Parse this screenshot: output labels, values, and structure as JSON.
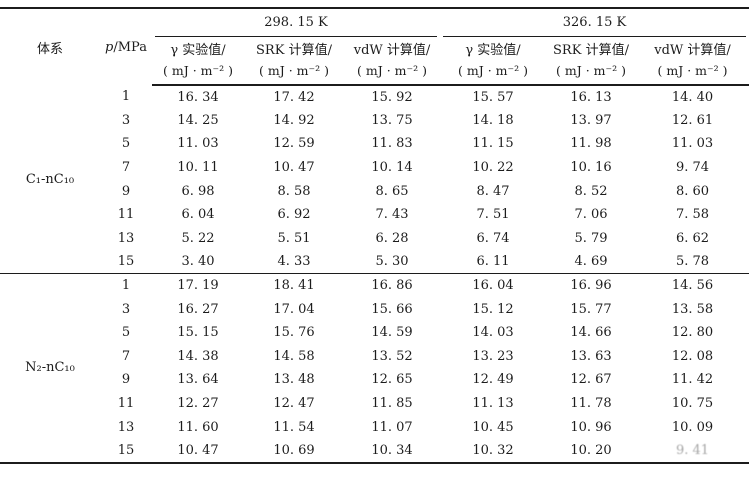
{
  "table": {
    "header": {
      "system_label": "体系",
      "p_symbol": "p",
      "p_unit": "/MPa",
      "unit_line": "( mJ · m⁻² )",
      "groups": [
        {
          "temp": "298. 15 K",
          "cols": [
            "γ 实验值/",
            "SRK 计算值/",
            "vdW 计算值/"
          ]
        },
        {
          "temp": "326. 15 K",
          "cols": [
            "γ 实验值/",
            "SRK 计算值/",
            "vdW 计算值/"
          ]
        }
      ]
    },
    "sections": [
      {
        "system": "C₁-nC₁₀",
        "rows": [
          [
            "1",
            "16. 34",
            "17. 42",
            "15. 92",
            "15. 57",
            "16. 13",
            "14. 40"
          ],
          [
            "3",
            "14. 25",
            "14. 92",
            "13. 75",
            "14. 18",
            "13. 97",
            "12. 61"
          ],
          [
            "5",
            "11. 03",
            "12. 59",
            "11. 83",
            "11. 15",
            "11. 98",
            "11. 03"
          ],
          [
            "7",
            "10. 11",
            "10. 47",
            "10. 14",
            "10. 22",
            "10. 16",
            "9. 74"
          ],
          [
            "9",
            "6. 98",
            "8. 58",
            "8. 65",
            "8. 47",
            "8. 52",
            "8. 60"
          ],
          [
            "11",
            "6. 04",
            "6. 92",
            "7. 43",
            "7. 51",
            "7. 06",
            "7. 58"
          ],
          [
            "13",
            "5. 22",
            "5. 51",
            "6. 28",
            "6. 74",
            "5. 79",
            "6. 62"
          ],
          [
            "15",
            "3. 40",
            "4. 33",
            "5. 30",
            "6. 11",
            "4. 69",
            "5. 78"
          ]
        ]
      },
      {
        "system": "N₂-nC₁₀",
        "rows": [
          [
            "1",
            "17. 19",
            "18. 41",
            "16. 86",
            "16. 04",
            "16. 96",
            "14. 56"
          ],
          [
            "3",
            "16. 27",
            "17. 04",
            "15. 66",
            "15. 12",
            "15. 77",
            "13. 58"
          ],
          [
            "5",
            "15. 15",
            "15. 76",
            "14. 59",
            "14. 03",
            "14. 66",
            "12. 80"
          ],
          [
            "7",
            "14. 38",
            "14. 58",
            "13. 52",
            "13. 23",
            "13. 63",
            "12. 08"
          ],
          [
            "9",
            "13. 64",
            "13. 48",
            "12. 65",
            "12. 49",
            "12. 67",
            "11. 42"
          ],
          [
            "11",
            "12. 27",
            "12. 47",
            "11. 85",
            "11. 13",
            "11. 78",
            "10. 75"
          ],
          [
            "13",
            "11. 60",
            "11. 54",
            "11. 07",
            "10. 45",
            "10. 96",
            "10. 09"
          ],
          [
            "15",
            "10. 47",
            "10. 69",
            "10. 34",
            "10. 32",
            "10. 20",
            {
              "v": "9. 41",
              "faded": true
            }
          ]
        ]
      }
    ]
  },
  "colors": {
    "text": "#1c1c1c",
    "rule": "#1c1c1c",
    "background": "#ffffff"
  }
}
